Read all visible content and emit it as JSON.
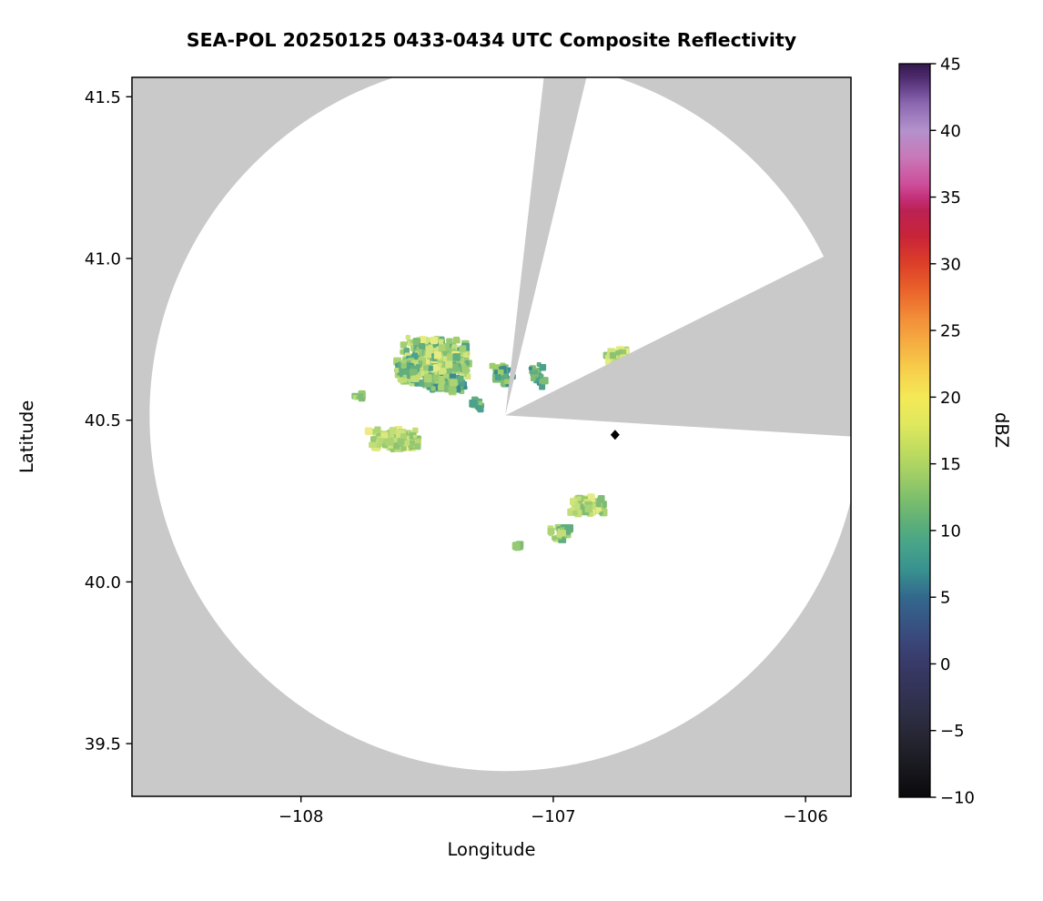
{
  "page": {
    "background": "#ffffff"
  },
  "chart_data": {
    "type": "heatmap",
    "title": "SEA-POL 20250125 0433-0434 UTC Composite Reflectivity",
    "xlabel": "Longitude",
    "ylabel": "Latitude",
    "xlim": [
      -108.67,
      -105.82
    ],
    "ylim": [
      39.337,
      41.56
    ],
    "grid": false,
    "xticks": {
      "values": [
        -108,
        -107,
        -106
      ],
      "labels": [
        "−108",
        "−107",
        "−106"
      ]
    },
    "yticks": {
      "values": [
        39.5,
        40.0,
        40.5,
        41.0,
        41.5
      ],
      "labels": [
        "39.5",
        "40.0",
        "40.5",
        "41.0",
        "41.5"
      ]
    },
    "colorbar": {
      "label": "dBZ",
      "min": -10,
      "max": 45,
      "tick_values": [
        -10,
        -5,
        0,
        5,
        10,
        15,
        20,
        25,
        30,
        35,
        40,
        45
      ],
      "tick_labels": [
        "−10",
        "−5",
        "0",
        "5",
        "10",
        "15",
        "20",
        "25",
        "30",
        "35",
        "40",
        "45"
      ],
      "stops": [
        [
          -10,
          "#0a0a0c"
        ],
        [
          -8,
          "#17171d"
        ],
        [
          -6,
          "#23232e"
        ],
        [
          -4,
          "#2c2d42"
        ],
        [
          -2,
          "#333356"
        ],
        [
          0,
          "#383a68"
        ],
        [
          2,
          "#3a497c"
        ],
        [
          4,
          "#355d88"
        ],
        [
          5,
          "#33688c"
        ],
        [
          7,
          "#38918f"
        ],
        [
          9,
          "#48a489"
        ],
        [
          10,
          "#54ab7d"
        ],
        [
          12,
          "#76bb6e"
        ],
        [
          14,
          "#9dcd66"
        ],
        [
          16,
          "#c0dc5f"
        ],
        [
          18,
          "#e0e85e"
        ],
        [
          20,
          "#f4e957"
        ],
        [
          22,
          "#f7cf4c"
        ],
        [
          24,
          "#f6ae42"
        ],
        [
          26,
          "#f28c37"
        ],
        [
          28,
          "#ea632b"
        ],
        [
          30,
          "#dc3f28"
        ],
        [
          32,
          "#c92538"
        ],
        [
          34,
          "#bb2153"
        ],
        [
          35,
          "#c5327b"
        ],
        [
          36,
          "#cd4f9b"
        ],
        [
          38,
          "#c878b8"
        ],
        [
          40,
          "#b392cc"
        ],
        [
          42,
          "#8b68b0"
        ],
        [
          43,
          "#6c4792"
        ],
        [
          44,
          "#4c2a6b"
        ],
        [
          45,
          "#331a4e"
        ]
      ]
    },
    "radar": {
      "center_lon": -107.19,
      "center_lat": 40.515,
      "radius_deg_lat": 1.1,
      "coverage_color": "#ffffff",
      "nodata_color": "#c9c9c9",
      "blocked_sectors_deg": [
        [
          6.5,
          13.5
        ],
        [
          63.5,
          93.5
        ]
      ]
    },
    "site_marker": {
      "lon": -106.755,
      "lat": 40.455,
      "shape": "diamond",
      "color": "#000000"
    },
    "echo_clusters": [
      {
        "name": "main-core",
        "lon": -107.47,
        "lat": 40.69,
        "ext_lon": 0.145,
        "ext_lat": 0.07,
        "n": 520,
        "seed": 11,
        "colors": [
          "#abd374",
          "#96c972",
          "#bcdd79",
          "#7fbc75",
          "#d0e47d",
          "#e4eb81",
          "#62ad7f",
          "#4ba18c",
          "#8dc370",
          "#a2ce72",
          "#d0e47d"
        ]
      },
      {
        "name": "main-west-lobe",
        "lon": -107.57,
        "lat": 40.65,
        "ext_lon": 0.055,
        "ext_lat": 0.04,
        "n": 120,
        "seed": 22,
        "colors": [
          "#abd374",
          "#96c972",
          "#7fbc75",
          "#62ad7f",
          "#bcdd79",
          "#4ba18c",
          "#c4de77"
        ]
      },
      {
        "name": "main-south-fringe",
        "lon": -107.43,
        "lat": 40.61,
        "ext_lon": 0.1,
        "ext_lat": 0.03,
        "n": 80,
        "seed": 33,
        "colors": [
          "#62ad7f",
          "#7fbc75",
          "#96c972",
          "#4ba18c",
          "#3a8a90",
          "#abd374"
        ]
      },
      {
        "name": "main-east-specks",
        "lon": -107.2,
        "lat": 40.64,
        "ext_lon": 0.05,
        "ext_lat": 0.035,
        "n": 40,
        "seed": 44,
        "colors": [
          "#4ba18c",
          "#7fbc75",
          "#9dcd66",
          "#3a8a90",
          "#62ad7f"
        ]
      },
      {
        "name": "notch-east-specks",
        "lon": -107.06,
        "lat": 40.64,
        "ext_lon": 0.035,
        "ext_lat": 0.04,
        "n": 26,
        "seed": 55,
        "colors": [
          "#3a8a90",
          "#4ba18c",
          "#62ad7f",
          "#7fbc75"
        ]
      },
      {
        "name": "west-speck",
        "lon": -107.77,
        "lat": 40.575,
        "ext_lon": 0.02,
        "ext_lat": 0.01,
        "n": 8,
        "seed": 66,
        "colors": [
          "#96c972",
          "#bcdd79",
          "#7fbc75"
        ]
      },
      {
        "name": "mid-left-blob",
        "lon": -107.63,
        "lat": 40.44,
        "ext_lon": 0.105,
        "ext_lat": 0.032,
        "n": 170,
        "seed": 77,
        "colors": [
          "#d0e47d",
          "#dde97c",
          "#abd374",
          "#96c972",
          "#eeeb86",
          "#c4de77",
          "#b8d873",
          "#8dc370"
        ]
      },
      {
        "name": "south-specks",
        "lon": -107.3,
        "lat": 40.55,
        "ext_lon": 0.03,
        "ext_lat": 0.02,
        "n": 16,
        "seed": 88,
        "colors": [
          "#62ad7f",
          "#96c972",
          "#4ba18c"
        ]
      },
      {
        "name": "ne-blob",
        "lon": -106.745,
        "lat": 40.695,
        "ext_lon": 0.05,
        "ext_lat": 0.026,
        "n": 90,
        "seed": 99,
        "colors": [
          "#d0e47d",
          "#abd374",
          "#e4eb81",
          "#96c972",
          "#c4de77",
          "#8dc370"
        ]
      },
      {
        "name": "se-blob",
        "lon": -106.865,
        "lat": 40.235,
        "ext_lon": 0.07,
        "ext_lat": 0.03,
        "n": 110,
        "seed": 111,
        "colors": [
          "#d0e47d",
          "#abd374",
          "#96c972",
          "#e4eb81",
          "#7fbc75",
          "#c4de77"
        ]
      },
      {
        "name": "se-scatter",
        "lon": -106.97,
        "lat": 40.15,
        "ext_lon": 0.05,
        "ext_lat": 0.025,
        "n": 30,
        "seed": 122,
        "colors": [
          "#abd374",
          "#96c972",
          "#62ad7f",
          "#c4de77"
        ]
      },
      {
        "name": "se-speck",
        "lon": -107.14,
        "lat": 40.11,
        "ext_lon": 0.015,
        "ext_lat": 0.008,
        "n": 8,
        "seed": 133,
        "colors": [
          "#96c972",
          "#7fbc75"
        ]
      }
    ]
  }
}
